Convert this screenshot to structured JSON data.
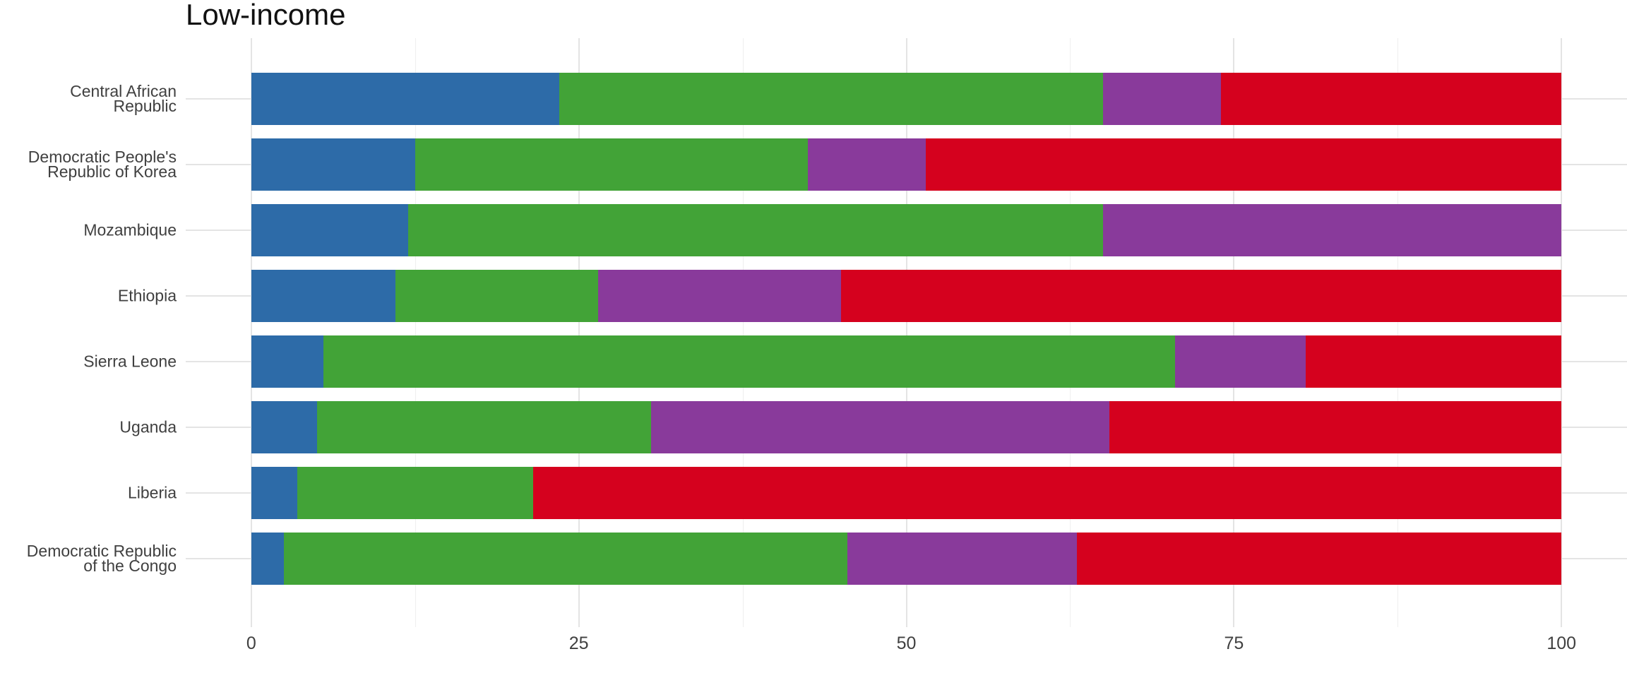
{
  "title": "Low-income",
  "colors": {
    "background": "#ffffff",
    "title_text": "#111111",
    "axis_text": "#404040",
    "grid_major": "#e4e4e4",
    "grid_minor": "#efefef"
  },
  "chart_data": {
    "type": "bar",
    "orientation": "horizontal",
    "stacked": true,
    "title": "Low-income",
    "xlabel": "",
    "ylabel": "",
    "xlim": [
      0,
      100
    ],
    "grid": true,
    "legend_position": "none",
    "x_ticks": [
      {
        "value": 0,
        "label": "0"
      },
      {
        "value": 25,
        "label": "25"
      },
      {
        "value": 50,
        "label": "50"
      },
      {
        "value": 75,
        "label": "75"
      },
      {
        "value": 100,
        "label": "100"
      }
    ],
    "x_minor_ticks": [
      12.5,
      37.5,
      62.5,
      87.5
    ],
    "categories": [
      "Central African\nRepublic",
      "Democratic People's\nRepublic of Korea",
      "Mozambique",
      "Ethiopia",
      "Sierra Leone",
      "Uganda",
      "Liberia",
      "Democratic Republic\nof the Congo"
    ],
    "series": [
      {
        "name": "series-blue",
        "color": "#2d6ba8",
        "values": [
          23.5,
          12.5,
          12,
          11,
          5.5,
          5,
          3.5,
          2.5
        ]
      },
      {
        "name": "series-green",
        "color": "#42a337",
        "values": [
          41.5,
          30,
          53,
          15.5,
          65,
          25.5,
          18,
          43
        ]
      },
      {
        "name": "series-purple",
        "color": "#893a9b",
        "values": [
          9,
          9,
          35,
          18.5,
          10,
          35,
          0,
          17.5
        ]
      },
      {
        "name": "series-red",
        "color": "#d5011e",
        "values": [
          26,
          48.5,
          0,
          55,
          19.5,
          34.5,
          78.5,
          37
        ]
      }
    ]
  }
}
